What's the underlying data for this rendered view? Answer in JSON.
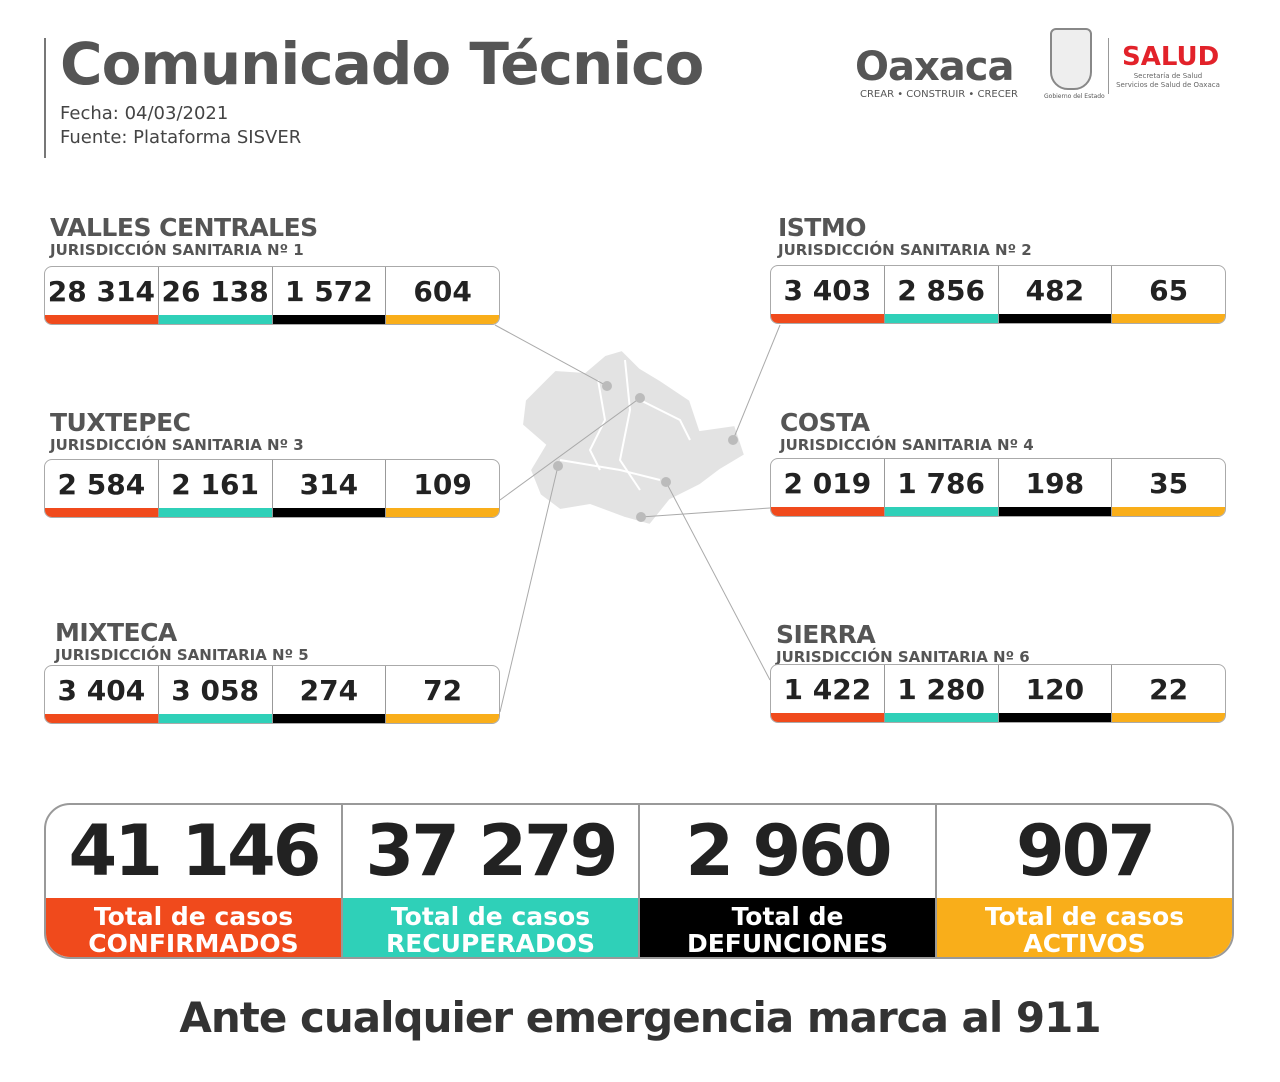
{
  "header": {
    "title": "Comunicado Técnico",
    "fecha": "Fecha: 04/03/2021",
    "fuente": "Fuente: Plataforma SISVER"
  },
  "logos": {
    "oaxaca": "Oaxaca",
    "oaxaca_tagline": "CREAR • CONSTRUIR • CRECER",
    "gobierno": "Gobierno del Estado",
    "salud": "SALUD",
    "salud_sub1": "Secretaría de Salud",
    "salud_sub2": "Servicios de Salud de Oaxaca"
  },
  "colors": {
    "confirmados": "#f04a1c",
    "recuperados": "#2fd0b8",
    "defunciones": "#000000",
    "activos": "#f9ae1a"
  },
  "regions": [
    {
      "name": "VALLES CENTRALES",
      "jurisdiccion": "JURISDICCIÓN SANITARIA Nº 1",
      "values": [
        "28 314",
        "26 138",
        "1 572",
        "604"
      ]
    },
    {
      "name": "TUXTEPEC",
      "jurisdiccion": "JURISDICCIÓN SANITARIA Nº 3",
      "values": [
        "2 584",
        "2 161",
        "314",
        "109"
      ]
    },
    {
      "name": "MIXTECA",
      "jurisdiccion": "JURISDICCIÓN SANITARIA Nº 5",
      "values": [
        "3 404",
        "3 058",
        "274",
        "72"
      ]
    },
    {
      "name": "ISTMO",
      "jurisdiccion": "JURISDICCIÓN SANITARIA Nº 2",
      "values": [
        "3 403",
        "2 856",
        "482",
        "65"
      ]
    },
    {
      "name": "COSTA",
      "jurisdiccion": "JURISDICCIÓN SANITARIA Nº 4",
      "values": [
        "2 019",
        "1 786",
        "198",
        "35"
      ]
    },
    {
      "name": "SIERRA",
      "jurisdiccion": "JURISDICCIÓN SANITARIA Nº 6",
      "values": [
        "1 422",
        "1 280",
        "120",
        "22"
      ]
    }
  ],
  "totals": [
    {
      "value": "41 146",
      "label1": "Total de casos",
      "label2": "CONFIRMADOS"
    },
    {
      "value": "37 279",
      "label1": "Total de casos",
      "label2": "RECUPERADOS"
    },
    {
      "value": "2 960",
      "label1": "Total de",
      "label2": "DEFUNCIONES"
    },
    {
      "value": "907",
      "label1": "Total de casos",
      "label2": "ACTIVOS"
    }
  ],
  "footer": "Ante cualquier emergencia marca al 911"
}
